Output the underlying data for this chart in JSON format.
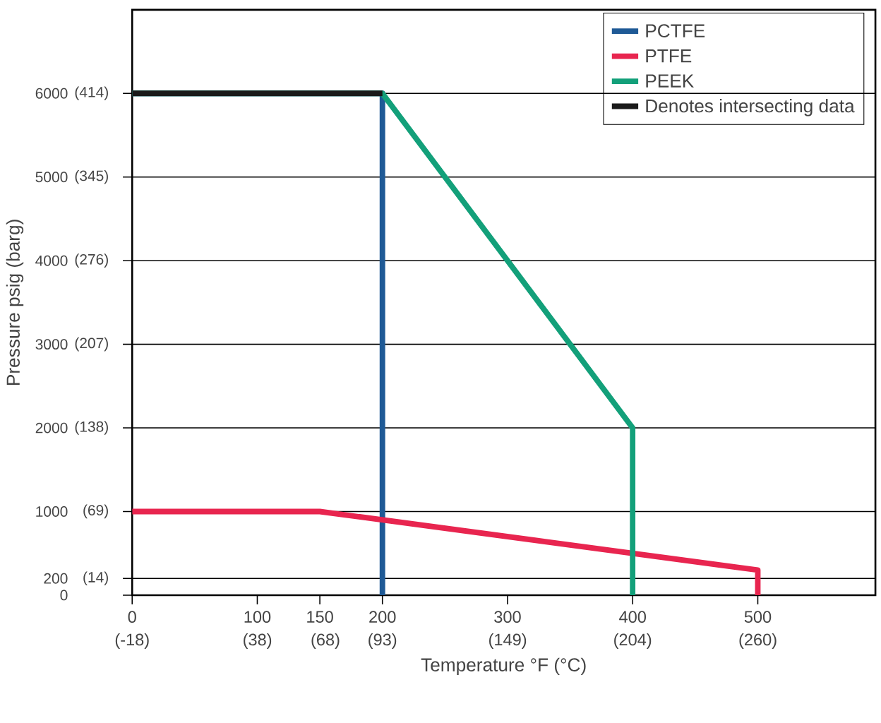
{
  "chart_data": {
    "type": "line",
    "xlabel": "Temperature °F (°C)",
    "ylabel": "Pressure psig (barg)",
    "xlim": [
      0,
      594
    ],
    "ylim": [
      0,
      7000
    ],
    "xticks": [
      0,
      100,
      150,
      200,
      300,
      400,
      500
    ],
    "yticks": [
      0,
      200,
      1000,
      2000,
      3000,
      4000,
      5000,
      6000
    ],
    "x2lim": [
      -17.8,
      312.2
    ],
    "x2ticks": [
      {
        "value": -17.8,
        "label": "(-18)"
      },
      {
        "value": 37.8,
        "label": "(38)"
      },
      {
        "value": 68,
        "label": "(68)"
      },
      {
        "value": 93.3,
        "label": "(93)"
      },
      {
        "value": 148.9,
        "label": "(149)"
      },
      {
        "value": 204.4,
        "label": "(204)"
      },
      {
        "value": 260,
        "label": "(260)"
      }
    ],
    "y2lim": [
      0,
      482.6
    ],
    "y2ticks": [
      {
        "value": 13.8,
        "label": "(14)"
      },
      {
        "value": 69,
        "label": "(69)"
      },
      {
        "value": 137.9,
        "label": "(138)"
      },
      {
        "value": 206.8,
        "label": "(207)"
      },
      {
        "value": 275.8,
        "label": "(276)"
      },
      {
        "value": 344.7,
        "label": "(345)"
      },
      {
        "value": 413.7,
        "label": "(414)"
      }
    ],
    "grid": "y",
    "legend": "top right",
    "marker": "none",
    "line_style": "solid",
    "series": [
      {
        "name": "PCTFE",
        "color": "#1f5a96",
        "x": [
          0,
          200,
          200
        ],
        "values": [
          6000,
          6000,
          0
        ]
      },
      {
        "name": "PTFE",
        "color": "#e8254f",
        "x": [
          0,
          150,
          500,
          500
        ],
        "values": [
          1000,
          1000,
          300,
          0
        ]
      },
      {
        "name": "PEEK",
        "color": "#13a07a",
        "x": [
          0,
          200,
          400,
          400
        ],
        "values": [
          6000,
          6000,
          2000,
          0
        ]
      },
      {
        "name": "Denotes intersecting data",
        "color": "#1a1a1a",
        "x": [
          0,
          200
        ],
        "values": [
          6000,
          6000
        ]
      }
    ]
  }
}
